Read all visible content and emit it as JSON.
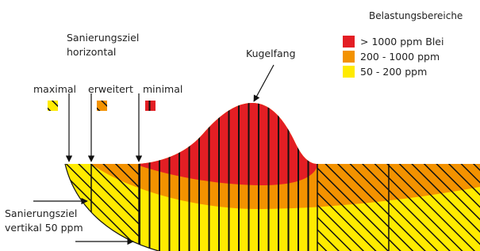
{
  "legend": {
    "title": "Belastungsbereiche",
    "items": [
      {
        "label": "> 1000 ppm Blei",
        "color": "#e31e24"
      },
      {
        "label": "200 - 1000 ppm",
        "color": "#f39200"
      },
      {
        "label": "50 - 200 ppm",
        "color": "#ffeb00"
      }
    ]
  },
  "labels": {
    "horizontal_line1": "Sanierungsziel",
    "horizontal_line2": "horizontal",
    "kugelfang": "Kugelfang",
    "maximal": "maximal",
    "erweitert": "erweitert",
    "minimal": "minimal",
    "vertical_line1": "Sanierungsziel",
    "vertical_line2": "vertikal 50 ppm"
  }
}
